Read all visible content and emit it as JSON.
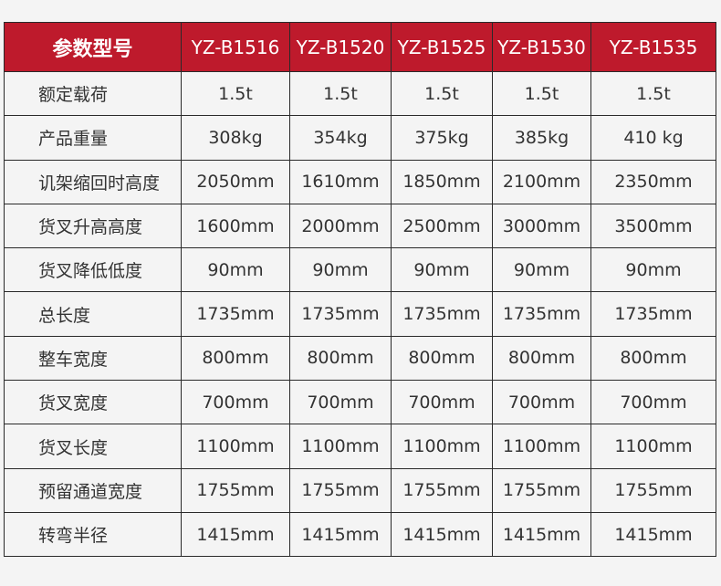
{
  "header": {
    "title": "参数型号",
    "models": [
      "YZ-B1516",
      "YZ-B1520",
      "YZ-B1525",
      "YZ-B1530",
      "YZ-B1535"
    ]
  },
  "rows": [
    {
      "label": "额定载荷",
      "values": [
        "1.5t",
        "1.5t",
        "1.5t",
        "1.5t",
        "1.5t"
      ]
    },
    {
      "label": "产品重量",
      "values": [
        "308kg",
        "354kg",
        "375kg",
        "385kg",
        "410 kg"
      ]
    },
    {
      "label": "讥架缩回时高度",
      "values": [
        "2050mm",
        "1610mm",
        "1850mm",
        "2100mm",
        "2350mm"
      ]
    },
    {
      "label": "货叉升高高度",
      "values": [
        "1600mm",
        "2000mm",
        "2500mm",
        "3000mm",
        "3500mm"
      ]
    },
    {
      "label": "货叉降低低度",
      "values": [
        "90mm",
        "90mm",
        "90mm",
        "90mm",
        "90mm"
      ]
    },
    {
      "label": "总长度",
      "values": [
        "1735mm",
        "1735mm",
        "1735mm",
        "1735mm",
        "1735mm"
      ]
    },
    {
      "label": "整车宽度",
      "values": [
        "800mm",
        "800mm",
        "800mm",
        "800mm",
        "800mm"
      ]
    },
    {
      "label": "货叉宽度",
      "values": [
        "700mm",
        "700mm",
        "700mm",
        "700mm",
        "700mm"
      ]
    },
    {
      "label": "货叉长度",
      "values": [
        "1100mm",
        "1100mm",
        "1100mm",
        "1100mm",
        "1100mm"
      ]
    },
    {
      "label": "预留通道宽度",
      "values": [
        "1755mm",
        "1755mm",
        "1755mm",
        "1755mm",
        "1755mm"
      ]
    },
    {
      "label": "转弯半径",
      "values": [
        "1415mm",
        "1415mm",
        "1415mm",
        "1415mm",
        "1415mm"
      ]
    }
  ],
  "colors": {
    "header_bg": "#be1a2c",
    "page_bg": "#f4f4f4",
    "border": "#2a2a2a"
  }
}
